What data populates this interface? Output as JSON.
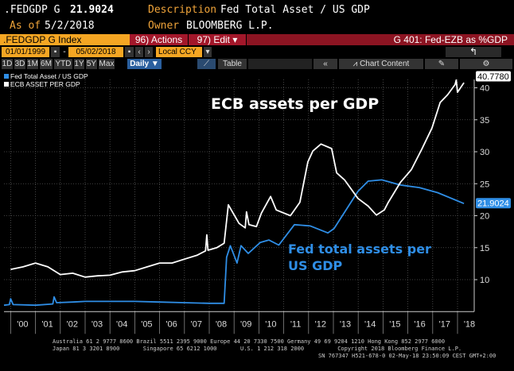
{
  "header": {
    "ticker": ".FEDGDP G",
    "last_value": "21.9024",
    "description_label": "Description",
    "description": "Fed Total Asset / US GDP",
    "asof_label": "As of",
    "asof_date": "5/2/2018",
    "owner_label": "Owner",
    "owner": "BLOOMBERG L.P."
  },
  "toolbar": {
    "security": ".FEDGDP G Index",
    "actions": "96) Actions",
    "edit": "97) Edit",
    "chart_title": "G 401: Fed-EZB as %GDP",
    "start_date": "01/01/1999",
    "end_date": "05/02/2018",
    "currency": "Local CCY",
    "periods": [
      "1D",
      "3D",
      "1M",
      "6M",
      "YTD",
      "1Y",
      "5Y",
      "Max"
    ],
    "frequency": "Daily",
    "table": "Table",
    "chart_content": "Chart Content"
  },
  "colors": {
    "fed": "#2f8ee6",
    "ecb": "#ffffff",
    "orange": "#f5a623",
    "red": "#a3172a"
  },
  "chart_data": {
    "type": "line",
    "legend_placement": "top-left",
    "grid": true,
    "ylim": [
      5,
      41.3
    ],
    "xlim": [
      1999.73,
      2018.5
    ],
    "yticks": [
      10,
      15,
      20,
      25,
      30,
      35,
      40
    ],
    "xtick_labels": [
      "'00",
      "'01",
      "'02",
      "'03",
      "'04",
      "'05",
      "'06",
      "'07",
      "'08",
      "'09",
      "'10",
      "'11",
      "'12",
      "'13",
      "'14",
      "'15",
      "'16",
      "'17",
      "'18"
    ],
    "annotations": {
      "ecb": "ECB assets per GDP",
      "fed_line1": "Fed total assets per",
      "fed_line2": "US GDP"
    },
    "series": [
      {
        "name": "Fed Total Asset / US GDP",
        "last_label": "21.9024",
        "x": [
          1999.73,
          1999.95,
          2000.0,
          2000.1,
          2001.0,
          2001.7,
          2001.75,
          2001.85,
          2002.5,
          2003.0,
          2004.0,
          2005.0,
          2006.0,
          2007.0,
          2008.0,
          2008.6,
          2008.7,
          2008.85,
          2009.12,
          2009.28,
          2009.57,
          2010.05,
          2010.4,
          2010.8,
          2011.43,
          2012.07,
          2012.78,
          2013.03,
          2013.99,
          2014.4,
          2014.95,
          2015.7,
          2016.46,
          2017.2,
          2018.26
        ],
        "y": [
          6.0,
          6.1,
          7.0,
          6.1,
          6.0,
          6.2,
          7.3,
          6.4,
          6.5,
          6.6,
          6.6,
          6.6,
          6.5,
          6.4,
          6.3,
          6.3,
          13.5,
          15.3,
          12.6,
          15.3,
          14.1,
          15.8,
          16.2,
          15.4,
          18.6,
          18.4,
          17.3,
          18.0,
          23.8,
          25.4,
          25.6,
          24.8,
          24.4,
          23.6,
          21.9
        ]
      },
      {
        "name": "ECB ASSET PER GDP",
        "last_label": "40.7780",
        "x": [
          2000.0,
          2000.5,
          2001.0,
          2001.5,
          2002.0,
          2002.5,
          2003.0,
          2003.5,
          2004.0,
          2004.5,
          2005.0,
          2005.5,
          2006.0,
          2006.5,
          2007.0,
          2007.5,
          2007.85,
          2007.9,
          2007.95,
          2008.3,
          2008.6,
          2008.77,
          2009.2,
          2009.45,
          2009.5,
          2009.6,
          2009.9,
          2010.1,
          2010.47,
          2010.7,
          2011.27,
          2011.65,
          2011.97,
          2012.17,
          2012.5,
          2012.93,
          2013.13,
          2013.45,
          2013.99,
          2014.4,
          2014.73,
          2015.05,
          2015.2,
          2015.7,
          2016.14,
          2016.56,
          2016.97,
          2017.3,
          2017.6,
          2017.9,
          2017.95,
          2018.0,
          2018.26
        ],
        "y": [
          11.6,
          12.0,
          12.6,
          12.0,
          10.8,
          11.0,
          10.4,
          10.6,
          10.7,
          11.2,
          11.4,
          12.0,
          12.6,
          12.6,
          13.2,
          13.8,
          14.5,
          17.0,
          14.6,
          15.0,
          15.7,
          21.7,
          18.8,
          18.1,
          20.6,
          18.6,
          18.3,
          20.4,
          23.0,
          20.9,
          20.0,
          22.1,
          28.4,
          30.1,
          31.2,
          30.5,
          26.7,
          25.6,
          22.7,
          21.5,
          20.1,
          20.9,
          22.0,
          25.2,
          27.2,
          30.4,
          33.7,
          37.7,
          38.9,
          40.5,
          41.2,
          39.3,
          40.8
        ]
      }
    ]
  },
  "footer": {
    "line1": "Australia 61 2 9777 8600 Brazil 5511 2395 9000 Europe 44 20 7330 7500 Germany 49 69 9204 1210 Hong Kong 852 2977 6000",
    "line2": "Japan 81 3 3201 8900       Singapore 65 6212 1000       U.S. 1 212 318 2000          Copyright 2018 Bloomberg Finance L.P.",
    "line3": "SN 767347 H521-678-0 02-May-18 23:50:09 CEST GMT+2:00"
  }
}
